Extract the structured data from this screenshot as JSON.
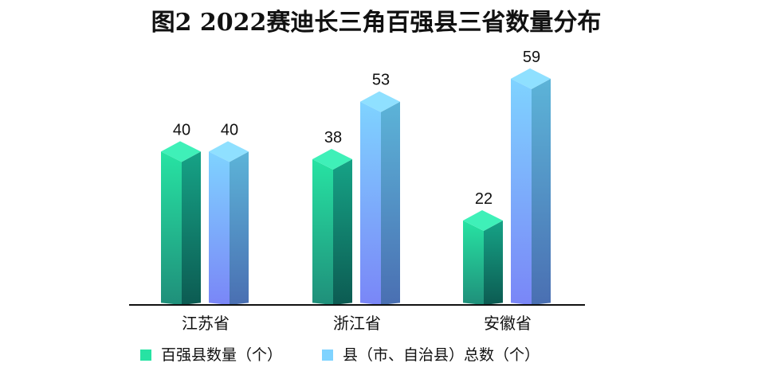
{
  "chart_data": {
    "type": "bar",
    "title": "图2  2022赛迪长三角百强县三省数量分布",
    "categories": [
      "江苏省",
      "浙江省",
      "安徽省"
    ],
    "series": [
      {
        "name": "百强县数量（个）",
        "values": [
          40,
          38,
          22
        ]
      },
      {
        "name": "县（市、自治县）总数（个）",
        "values": [
          40,
          53,
          59
        ]
      }
    ],
    "ylim": [
      0,
      60
    ],
    "grid": false,
    "legend_position": "bottom-left"
  },
  "colors": {
    "series1_front_top": "#27e3a3",
    "series1_front_bottom": "#1f8f7a",
    "series1_side_top": "#16a386",
    "series1_side_bottom": "#0c5b52",
    "series1_cap": "#3ff0b8",
    "series2_front_top": "#7fd3ff",
    "series2_front_bottom": "#7a86f7",
    "series2_side_top": "#5cb4d8",
    "series2_side_bottom": "#4a6fb2",
    "series2_cap": "#8fe0ff",
    "axis": "#111111"
  }
}
